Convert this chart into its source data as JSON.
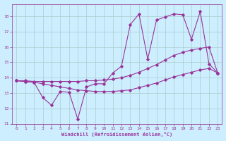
{
  "xlabel": "Windchill (Refroidissement éolien,°C)",
  "bg_color": "#cceeff",
  "line_color": "#993399",
  "grid_color": "#aacccc",
  "xlim": [
    -0.5,
    23.5
  ],
  "ylim": [
    11,
    18.8
  ],
  "yticks": [
    11,
    12,
    13,
    14,
    15,
    16,
    17,
    18
  ],
  "xticks": [
    0,
    1,
    2,
    3,
    4,
    5,
    6,
    7,
    8,
    9,
    10,
    11,
    12,
    13,
    14,
    15,
    16,
    17,
    18,
    19,
    20,
    21,
    22,
    23
  ],
  "line1_x": [
    0,
    1,
    2,
    3,
    4,
    5,
    6,
    7,
    8,
    9,
    10,
    11,
    12,
    13,
    14,
    15,
    16,
    17,
    18,
    19,
    20,
    21,
    22,
    23
  ],
  "line1_y": [
    13.8,
    13.8,
    13.75,
    13.75,
    13.75,
    13.75,
    13.75,
    13.75,
    13.8,
    13.8,
    13.85,
    13.9,
    14.0,
    14.15,
    14.35,
    14.6,
    14.85,
    15.15,
    15.45,
    15.65,
    15.8,
    15.9,
    16.0,
    14.3
  ],
  "line2_x": [
    0,
    1,
    2,
    3,
    4,
    5,
    6,
    7,
    8,
    9,
    10,
    11,
    12,
    13,
    14,
    15,
    16,
    17,
    18,
    19,
    20,
    21,
    22,
    23
  ],
  "line2_y": [
    13.8,
    13.75,
    13.7,
    13.6,
    13.5,
    13.4,
    13.3,
    13.2,
    13.15,
    13.1,
    13.1,
    13.1,
    13.15,
    13.2,
    13.35,
    13.5,
    13.65,
    13.85,
    14.05,
    14.2,
    14.35,
    14.5,
    14.6,
    14.3
  ],
  "line3_x": [
    0,
    1,
    2,
    3,
    4,
    5,
    6,
    7,
    8,
    9,
    10,
    11,
    12,
    13,
    14,
    15,
    16,
    17,
    18,
    19,
    20,
    21,
    22,
    23
  ],
  "line3_y": [
    13.8,
    13.75,
    13.7,
    12.7,
    12.2,
    13.1,
    13.05,
    11.3,
    13.4,
    13.6,
    13.6,
    14.3,
    14.75,
    17.45,
    18.15,
    15.2,
    17.75,
    17.95,
    18.15,
    18.1,
    16.5,
    18.3,
    14.9,
    14.3
  ]
}
